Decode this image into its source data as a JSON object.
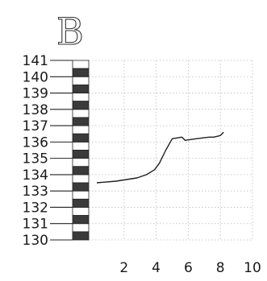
{
  "panel_label": "B",
  "chart_data": {
    "type": "line",
    "title": "",
    "xlabel": "",
    "ylabel": "",
    "xlim": [
      0,
      10
    ],
    "ylim": [
      130,
      141
    ],
    "x_ticks": [
      2,
      4,
      6,
      8,
      10
    ],
    "y_ticks": [
      130,
      131,
      132,
      133,
      134,
      135,
      136,
      137,
      138,
      139,
      140,
      141
    ],
    "grid": true,
    "series": [
      {
        "x": [
          0.3,
          1.5,
          2.8,
          3.4,
          3.9,
          4.2,
          4.6,
          5.0,
          5.6,
          5.8,
          6.5,
          7.3,
          7.6,
          8.0,
          8.2
        ],
        "y": [
          133.5,
          133.6,
          133.8,
          134.0,
          134.3,
          134.7,
          135.5,
          136.2,
          136.3,
          136.1,
          136.2,
          136.3,
          136.3,
          136.4,
          136.6
        ]
      }
    ]
  }
}
